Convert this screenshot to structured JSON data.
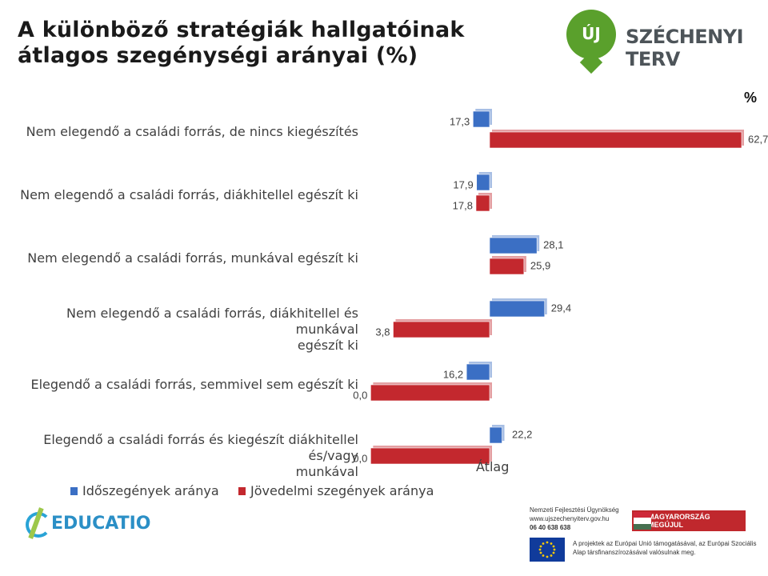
{
  "title": "A különböző stratégiák hallgatóinak átlagos szegénységi arányai (%)",
  "logo": {
    "badge": "ÚJ",
    "name": "SZÉCHENYI TERV"
  },
  "unit_label": "%",
  "xlabel": "Átlag",
  "colors": {
    "series1": "#3b6fc4",
    "series2": "#c3282e"
  },
  "chart_data": {
    "type": "bar",
    "orientation": "horizontal",
    "categories": [
      "Nem elegendő a családi forrás, de nincs kiegészítés",
      "Nem elegendő a családi forrás, diákhitellel egészít ki",
      "Nem elegendő a családi forrás, munkával egészít ki",
      "Nem elegendő a családi forrás, diákhitellel és munkával egészít ki",
      "Elegendő a családi forrás, semmivel sem egészít ki",
      "Elegendő a családi forrás és kiegészít diákhitellel és/vagy munkával"
    ],
    "category_lines": [
      [
        "Nem elegendő a családi forrás, de nincs kiegészítés"
      ],
      [
        "Nem elegendő a családi forrás, diákhitellel egészít ki"
      ],
      [
        "Nem elegendő a családi forrás, munkával egészít ki"
      ],
      [
        "Nem elegendő a családi forrás, diákhitellel és munkával",
        "egészít ki"
      ],
      [
        "Elegendő a családi forrás, semmivel sem egészít ki"
      ],
      [
        "Elegendő a családi forrás és kiegészít diákhitellel és/vagy",
        "munkával"
      ]
    ],
    "baseline": 20.1,
    "series": [
      {
        "name": "Időszegények aránya",
        "values": [
          17.3,
          17.9,
          28.1,
          29.4,
          16.2,
          22.2
        ],
        "labels": [
          "17,3",
          "17,9",
          "28,1",
          "29,4",
          "16,2",
          "22,2"
        ]
      },
      {
        "name": "Jövedelmi szegények aránya",
        "values": [
          62.7,
          17.8,
          25.9,
          3.8,
          0.0,
          0.0
        ],
        "labels": [
          "62,7",
          "17,8",
          "25,9",
          "3,8",
          "0,0",
          "0,0"
        ]
      }
    ]
  },
  "footer": {
    "educatio": "EDUCATIO",
    "nfu_lines": [
      "Nemzeti Fejlesztési Ügynökség",
      "www.ujszechenyiterv.gov.hu",
      "06 40 638 638"
    ],
    "magyarorszag": "MAGYARORSZÁG MEGÚJUL",
    "eu_text": "A projektek az Európai Unió támogatásával, az Európai Szociális Alap társfinanszírozásával valósulnak meg."
  }
}
